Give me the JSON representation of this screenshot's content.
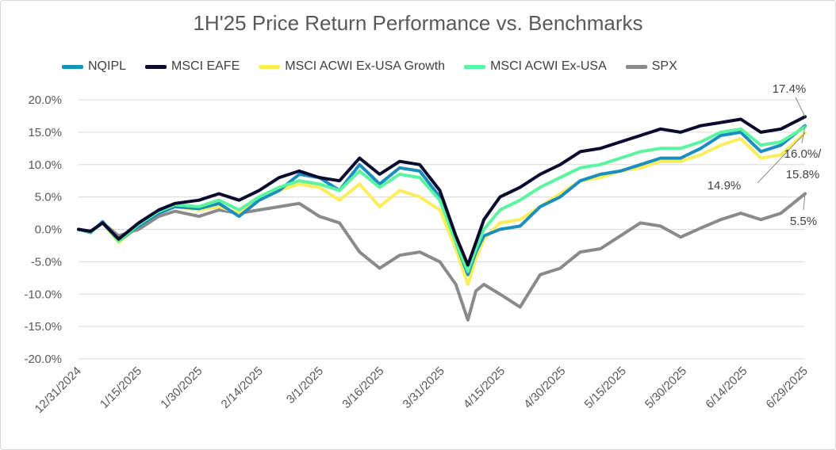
{
  "chart_data": {
    "type": "line",
    "title": "1H'25 Price Return Performance vs. Benchmarks",
    "xlabel": "",
    "ylabel": "",
    "ylim": [
      -20,
      20
    ],
    "y_tick_labels": [
      "20.0%",
      "15.0%",
      "10.0%",
      "5.0%",
      "0.0%",
      "-5.0%",
      "-10.0%",
      "-15.0%",
      "-20.0%"
    ],
    "x_tick_labels": [
      "12/31/2024",
      "1/15/2025",
      "1/30/2025",
      "2/14/2025",
      "3/1/2025",
      "3/16/2025",
      "3/31/2025",
      "4/15/2025",
      "4/30/2025",
      "5/15/2025",
      "5/30/2025",
      "6/14/2025",
      "6/29/2025"
    ],
    "x_range": [
      "2024-12-31",
      "2025-06-30"
    ],
    "grid": true,
    "legend_position": "top",
    "x": [
      "2024-12-31",
      "2025-01-03",
      "2025-01-06",
      "2025-01-10",
      "2025-01-15",
      "2025-01-20",
      "2025-01-24",
      "2025-01-30",
      "2025-02-04",
      "2025-02-09",
      "2025-02-14",
      "2025-02-19",
      "2025-02-24",
      "2025-03-01",
      "2025-03-06",
      "2025-03-11",
      "2025-03-16",
      "2025-03-21",
      "2025-03-26",
      "2025-03-31",
      "2025-04-04",
      "2025-04-07",
      "2025-04-09",
      "2025-04-11",
      "2025-04-15",
      "2025-04-20",
      "2025-04-25",
      "2025-04-30",
      "2025-05-05",
      "2025-05-10",
      "2025-05-15",
      "2025-05-20",
      "2025-05-25",
      "2025-05-30",
      "2025-06-04",
      "2025-06-09",
      "2025-06-14",
      "2025-06-19",
      "2025-06-24",
      "2025-06-30"
    ],
    "series": [
      {
        "name": "NQIPL",
        "color": "#1b8dbf",
        "values": [
          0.0,
          -0.5,
          1.2,
          -1.8,
          0.5,
          2.5,
          3.5,
          3.2,
          4.0,
          2.0,
          4.5,
          6.0,
          8.5,
          8.0,
          6.0,
          10.0,
          7.0,
          9.5,
          9.0,
          5.0,
          -2.0,
          -7.0,
          -3.5,
          -1.0,
          0.0,
          0.5,
          3.5,
          5.0,
          7.5,
          8.5,
          9.0,
          10.0,
          11.0,
          11.0,
          12.5,
          14.5,
          15.0,
          12.0,
          13.0,
          16.0
        ]
      },
      {
        "name": "MSCI EAFE",
        "color": "#0a0a2e",
        "values": [
          0.0,
          -0.3,
          1.0,
          -1.5,
          1.0,
          3.0,
          4.0,
          4.5,
          5.5,
          4.5,
          6.0,
          8.0,
          9.0,
          8.0,
          7.5,
          11.0,
          8.5,
          10.5,
          10.0,
          6.0,
          -1.0,
          -5.5,
          -2.0,
          1.5,
          5.0,
          6.5,
          8.5,
          10.0,
          12.0,
          12.5,
          13.5,
          14.5,
          15.5,
          15.0,
          16.0,
          16.5,
          17.0,
          15.0,
          15.5,
          17.4
        ]
      },
      {
        "name": "MSCI ACWI Ex-USA Growth",
        "color": "#fcee5a",
        "values": [
          0.0,
          -0.5,
          1.0,
          -2.0,
          0.5,
          2.5,
          3.5,
          3.0,
          3.5,
          2.5,
          4.5,
          6.0,
          7.0,
          6.5,
          4.5,
          7.0,
          3.5,
          6.0,
          5.0,
          3.0,
          -3.0,
          -8.5,
          -4.5,
          -1.5,
          1.0,
          1.5,
          3.5,
          5.5,
          7.5,
          8.0,
          9.0,
          9.5,
          10.5,
          10.5,
          11.5,
          13.0,
          14.0,
          11.0,
          11.5,
          14.9
        ]
      },
      {
        "name": "MSCI ACWI Ex-USA",
        "color": "#5af59f",
        "values": [
          0.0,
          -0.4,
          1.0,
          -1.8,
          0.8,
          2.8,
          3.8,
          3.5,
          4.5,
          3.0,
          5.0,
          6.5,
          7.5,
          7.0,
          6.0,
          9.0,
          6.5,
          8.5,
          8.0,
          4.5,
          -2.0,
          -6.5,
          -3.0,
          0.0,
          3.0,
          4.5,
          6.5,
          8.0,
          9.5,
          10.0,
          11.0,
          12.0,
          12.5,
          12.5,
          13.5,
          15.0,
          15.5,
          13.0,
          13.5,
          15.8
        ]
      },
      {
        "name": "SPX",
        "color": "#8a8a8a",
        "values": [
          0.0,
          -0.3,
          1.0,
          -1.0,
          0.0,
          2.0,
          2.8,
          2.0,
          3.0,
          2.5,
          3.0,
          3.5,
          4.0,
          2.0,
          1.0,
          -3.5,
          -6.0,
          -4.0,
          -3.5,
          -5.0,
          -8.5,
          -14.0,
          -9.5,
          -8.5,
          -10.0,
          -12.0,
          -7.0,
          -6.0,
          -3.5,
          -3.0,
          -1.0,
          1.0,
          0.5,
          -1.2,
          0.2,
          1.5,
          2.5,
          1.5,
          2.5,
          5.5
        ]
      }
    ],
    "annotations": [
      "17.4%",
      "16.0%/",
      "15.8%",
      "14.9%",
      "5.5%"
    ]
  }
}
